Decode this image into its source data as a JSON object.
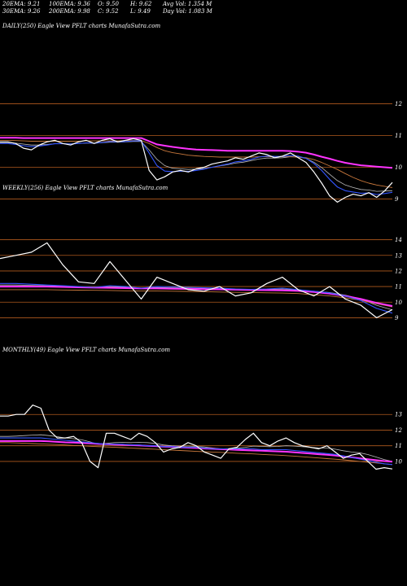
{
  "header": {
    "ema20": "20EMA: 9.21",
    "ema100": "100EMA: 9.36",
    "open": "O: 9.50",
    "high": "H: 9.62",
    "avgvol": "Avg Vol: 1.354  M",
    "ema30": "30EMA: 9.26",
    "ema200": "200EMA: 9.98",
    "close": "C: 9.52",
    "low": "L: 9.49",
    "dayvol": "Day Vol: 1.083  M"
  },
  "colors": {
    "background": "#000000",
    "price": "#ffffff",
    "ema_fast": "#3355ff",
    "ema_slow": "#ff33ff",
    "ma_brown": "#c8783c",
    "ma_gray": "#bbbbbb",
    "gridline": "#b05a1e"
  },
  "chart_data": [
    {
      "type": "line",
      "title": "DAILY(250) Eagle  View  PFLT charts MunafaSutra.com",
      "yticks": [
        12,
        11,
        10,
        9
      ],
      "ylim": [
        8.55,
        12.45
      ],
      "x": [
        0,
        5,
        10,
        15,
        20,
        25,
        30,
        35,
        40,
        45,
        50,
        55,
        60,
        65,
        70,
        75,
        80,
        85,
        90,
        95,
        100,
        105,
        110,
        115,
        120,
        125,
        130,
        135,
        140,
        145,
        150,
        155,
        160,
        165,
        170,
        175,
        180,
        185,
        190,
        195,
        200,
        205,
        210,
        215,
        220,
        225,
        230,
        235,
        240,
        245,
        250
      ],
      "series": [
        {
          "role": "price",
          "values": [
            10.8,
            10.8,
            10.75,
            10.6,
            10.55,
            10.7,
            10.8,
            10.85,
            10.75,
            10.7,
            10.8,
            10.85,
            10.75,
            10.85,
            10.9,
            10.8,
            10.85,
            10.9,
            10.85,
            9.9,
            9.6,
            9.7,
            9.85,
            9.9,
            9.85,
            9.95,
            10.0,
            10.1,
            10.15,
            10.2,
            10.3,
            10.25,
            10.35,
            10.45,
            10.4,
            10.3,
            10.35,
            10.45,
            10.3,
            10.15,
            9.85,
            9.5,
            9.1,
            8.9,
            9.05,
            9.15,
            9.1,
            9.2,
            9.05,
            9.25,
            9.52
          ]
        },
        {
          "role": "ema20",
          "values": [
            10.75,
            10.75,
            10.72,
            10.68,
            10.65,
            10.67,
            10.7,
            10.74,
            10.74,
            10.73,
            10.75,
            10.77,
            10.76,
            10.78,
            10.81,
            10.8,
            10.81,
            10.83,
            10.83,
            10.45,
            10.05,
            9.88,
            9.86,
            9.88,
            9.87,
            9.9,
            9.94,
            10.0,
            10.05,
            10.1,
            10.17,
            10.2,
            10.25,
            10.32,
            10.35,
            10.34,
            10.34,
            10.37,
            10.35,
            10.28,
            10.12,
            9.9,
            9.62,
            9.38,
            9.26,
            9.22,
            9.18,
            9.19,
            9.14,
            9.17,
            9.21
          ]
        },
        {
          "role": "ema30",
          "values": [
            10.78,
            10.78,
            10.76,
            10.73,
            10.7,
            10.7,
            10.72,
            10.74,
            10.74,
            10.74,
            10.75,
            10.76,
            10.76,
            10.77,
            10.79,
            10.79,
            10.8,
            10.81,
            10.81,
            10.55,
            10.25,
            10.05,
            9.97,
            9.95,
            9.93,
            9.94,
            9.96,
            10.0,
            10.04,
            10.08,
            10.13,
            10.16,
            10.21,
            10.26,
            10.29,
            10.29,
            10.3,
            10.33,
            10.32,
            10.28,
            10.16,
            9.99,
            9.78,
            9.58,
            9.44,
            9.36,
            9.3,
            9.28,
            9.24,
            9.25,
            9.26
          ]
        },
        {
          "role": "ema100",
          "values": [
            10.85,
            10.85,
            10.84,
            10.83,
            10.82,
            10.82,
            10.82,
            10.82,
            10.82,
            10.82,
            10.82,
            10.83,
            10.83,
            10.83,
            10.83,
            10.83,
            10.84,
            10.84,
            10.84,
            10.75,
            10.62,
            10.52,
            10.46,
            10.42,
            10.38,
            10.36,
            10.34,
            10.33,
            10.32,
            10.32,
            10.32,
            10.32,
            10.32,
            10.33,
            10.33,
            10.33,
            10.33,
            10.33,
            10.32,
            10.3,
            10.24,
            10.15,
            10.04,
            9.93,
            9.8,
            9.68,
            9.58,
            9.5,
            9.44,
            9.4,
            9.36
          ]
        },
        {
          "role": "ema200",
          "values": [
            10.93,
            10.93,
            10.93,
            10.92,
            10.92,
            10.92,
            10.92,
            10.92,
            10.92,
            10.92,
            10.92,
            10.92,
            10.92,
            10.92,
            10.92,
            10.92,
            10.92,
            10.92,
            10.92,
            10.82,
            10.72,
            10.68,
            10.64,
            10.61,
            10.58,
            10.56,
            10.55,
            10.54,
            10.53,
            10.52,
            10.52,
            10.52,
            10.52,
            10.52,
            10.52,
            10.52,
            10.52,
            10.51,
            10.49,
            10.46,
            10.4,
            10.33,
            10.27,
            10.2,
            10.14,
            10.1,
            10.06,
            10.04,
            10.02,
            10.0,
            9.98
          ]
        }
      ]
    },
    {
      "type": "line",
      "title": "WEEKLY(256) Eagle  View  PFLT charts MunafaSutra.com",
      "yticks": [
        14,
        13,
        12,
        11,
        10,
        9
      ],
      "ylim": [
        8.5,
        14.5
      ],
      "x": [
        0,
        10,
        20,
        30,
        40,
        50,
        60,
        70,
        80,
        90,
        100,
        110,
        120,
        130,
        140,
        150,
        160,
        170,
        180,
        190,
        200,
        210,
        220,
        230,
        240,
        250
      ],
      "series": [
        {
          "role": "price",
          "values": [
            12.8,
            13.0,
            13.2,
            13.8,
            12.4,
            11.3,
            11.2,
            12.6,
            11.4,
            10.2,
            11.6,
            11.2,
            10.8,
            10.7,
            11.0,
            10.4,
            10.6,
            11.2,
            11.6,
            10.8,
            10.4,
            11.0,
            10.2,
            9.8,
            9.0,
            9.52
          ]
        },
        {
          "role": "ema_fast",
          "values": [
            11.2,
            11.2,
            11.15,
            11.1,
            11.05,
            11.0,
            10.95,
            11.05,
            11.0,
            10.9,
            11.0,
            10.98,
            10.95,
            10.92,
            10.9,
            10.85,
            10.82,
            10.85,
            10.9,
            10.8,
            10.7,
            10.6,
            10.4,
            10.1,
            9.6,
            9.3
          ]
        },
        {
          "role": "ema_slow",
          "values": [
            11.0,
            11.0,
            11.0,
            11.0,
            10.98,
            10.95,
            10.93,
            10.92,
            10.9,
            10.88,
            10.88,
            10.86,
            10.85,
            10.83,
            10.82,
            10.8,
            10.78,
            10.77,
            10.76,
            10.72,
            10.65,
            10.55,
            10.4,
            10.2,
            9.95,
            9.75
          ]
        },
        {
          "role": "ma_brown",
          "values": [
            10.8,
            10.8,
            10.8,
            10.8,
            10.78,
            10.77,
            10.76,
            10.75,
            10.73,
            10.72,
            10.71,
            10.7,
            10.69,
            10.67,
            10.65,
            10.63,
            10.62,
            10.6,
            10.58,
            10.55,
            10.48,
            10.4,
            10.28,
            10.12,
            9.9,
            9.7
          ]
        },
        {
          "role": "ma_gray",
          "values": [
            11.1,
            11.1,
            11.08,
            11.05,
            11.02,
            10.98,
            10.95,
            10.98,
            10.96,
            10.9,
            10.94,
            10.92,
            10.9,
            10.88,
            10.86,
            10.82,
            10.8,
            10.82,
            10.85,
            10.78,
            10.7,
            10.62,
            10.45,
            10.2,
            9.8,
            9.5
          ]
        }
      ]
    },
    {
      "type": "line",
      "title": "MONTHLY(49) Eagle  View  PFLT charts MunafaSutra.com",
      "yticks": [
        13,
        12,
        11,
        10
      ],
      "ylim": [
        8.8,
        14.0
      ],
      "x": [
        0,
        1,
        2,
        3,
        4,
        5,
        6,
        7,
        8,
        9,
        10,
        11,
        12,
        13,
        14,
        15,
        16,
        17,
        18,
        19,
        20,
        21,
        22,
        23,
        24,
        25,
        26,
        27,
        28,
        29,
        30,
        31,
        32,
        33,
        34,
        35,
        36,
        37,
        38,
        39,
        40,
        41,
        42,
        43,
        44,
        45,
        46,
        47,
        48
      ],
      "series": [
        {
          "role": "price",
          "values": [
            12.9,
            12.9,
            13.0,
            13.0,
            13.6,
            13.4,
            12.0,
            11.5,
            11.5,
            11.6,
            11.2,
            10.0,
            9.6,
            11.8,
            11.8,
            11.6,
            11.4,
            11.8,
            11.6,
            11.2,
            10.6,
            10.8,
            10.9,
            11.2,
            11.0,
            10.6,
            10.4,
            10.2,
            10.8,
            10.9,
            11.4,
            11.8,
            11.2,
            11.0,
            11.3,
            11.5,
            11.2,
            11.0,
            10.9,
            10.8,
            11.0,
            10.6,
            10.2,
            10.4,
            10.5,
            10.0,
            9.5,
            9.6,
            9.52
          ]
        },
        {
          "role": "ema_fast",
          "values": [
            11.5,
            11.5,
            11.5,
            11.5,
            11.5,
            11.5,
            11.45,
            11.4,
            11.35,
            11.3,
            11.25,
            11.2,
            11.15,
            11.1,
            11.1,
            11.1,
            11.05,
            11.05,
            11.0,
            11.0,
            10.95,
            10.95,
            10.9,
            10.9,
            10.9,
            10.85,
            10.8,
            10.8,
            10.8,
            10.8,
            10.8,
            10.8,
            10.75,
            10.75,
            10.75,
            10.75,
            10.7,
            10.65,
            10.6,
            10.55,
            10.5,
            10.45,
            10.35,
            10.25,
            10.15,
            10.05,
            9.95,
            9.85,
            9.8
          ]
        },
        {
          "role": "ema_slow",
          "values": [
            11.3,
            11.3,
            11.3,
            11.3,
            11.3,
            11.3,
            11.28,
            11.25,
            11.22,
            11.2,
            11.18,
            11.15,
            11.12,
            11.1,
            11.08,
            11.06,
            11.04,
            11.02,
            11.0,
            10.98,
            10.95,
            10.93,
            10.9,
            10.88,
            10.86,
            10.83,
            10.8,
            10.78,
            10.76,
            10.74,
            10.72,
            10.7,
            10.68,
            10.66,
            10.64,
            10.62,
            10.58,
            10.54,
            10.5,
            10.46,
            10.42,
            10.38,
            10.32,
            10.26,
            10.2,
            10.14,
            10.08,
            10.02,
            9.98
          ]
        },
        {
          "role": "ma_brown",
          "values": [
            11.2,
            11.2,
            11.18,
            11.16,
            11.14,
            11.12,
            11.1,
            11.08,
            11.05,
            11.02,
            11.0,
            10.97,
            10.94,
            10.92,
            10.9,
            10.88,
            10.85,
            10.83,
            10.8,
            10.78,
            10.75,
            10.72,
            10.7,
            10.67,
            10.64,
            10.62,
            10.6,
            10.58,
            10.55,
            10.52,
            10.5,
            10.48,
            10.45,
            10.42,
            10.4,
            10.37,
            10.34,
            10.3,
            10.26,
            10.22,
            10.18,
            10.14,
            10.1,
            10.05,
            10.0,
            9.95,
            9.9,
            9.85,
            9.8
          ]
        },
        {
          "role": "ma_gray",
          "values": [
            11.6,
            11.6,
            11.62,
            11.65,
            11.68,
            11.7,
            11.65,
            11.58,
            11.5,
            11.45,
            11.38,
            11.25,
            11.1,
            11.15,
            11.2,
            11.22,
            11.2,
            11.22,
            11.2,
            11.15,
            11.05,
            11.0,
            10.98,
            10.98,
            10.96,
            10.92,
            10.86,
            10.8,
            10.82,
            10.84,
            10.9,
            10.98,
            10.96,
            10.94,
            10.96,
            11.0,
            10.98,
            10.94,
            10.9,
            10.86,
            10.85,
            10.78,
            10.68,
            10.6,
            10.55,
            10.44,
            10.28,
            10.12,
            10.0
          ]
        }
      ]
    }
  ]
}
